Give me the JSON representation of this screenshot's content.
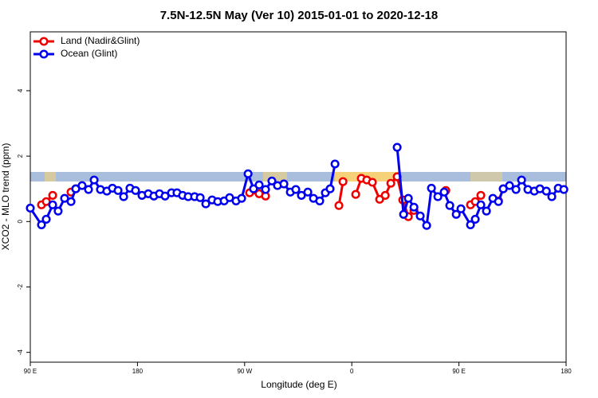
{
  "chart_data": {
    "type": "line",
    "title": "7.5N-12.5N May (Ver 10)   2015-01-01 to 2020-12-18",
    "x_label": "Longitude (deg E)",
    "y_label": "XCO2 - MLO trend (ppm)",
    "xlim": [
      90,
      540
    ],
    "xticks": [
      {
        "value": 90,
        "label": "90 E"
      },
      {
        "value": 180,
        "label": "180"
      },
      {
        "value": 270,
        "label": "90 W"
      },
      {
        "value": 360,
        "label": "0"
      },
      {
        "value": 450,
        "label": "90 E"
      },
      {
        "value": 540,
        "label": "180"
      }
    ],
    "ylim": [
      -4.3,
      5.8
    ],
    "yticks": [
      -4,
      -2,
      0,
      2,
      4
    ],
    "legend": "topleft",
    "series": [
      {
        "name": "Land (Nadir&Glint)",
        "color": "#ee0000",
        "x": [
          99.4,
          103.4,
          108.8,
          null,
          124.2,
          128.2,
          null,
          274.2,
          282.2,
          287.6,
          null,
          349.2,
          352.6,
          null,
          363.3,
          368.0,
          372.6,
          377.3,
          383.4,
          388.1,
          392.8,
          398.1,
          402.8,
          407.5,
          412.2,
          null,
          439.0,
          null,
          459.7,
          463.7,
          468.4,
          null,
          483.2,
          487.2
        ],
        "values": [
          0.51,
          0.61,
          0.8,
          null,
          0.9,
          1.0,
          null,
          0.88,
          0.85,
          0.78,
          null,
          0.49,
          1.22,
          null,
          0.83,
          1.32,
          1.27,
          1.2,
          0.68,
          0.8,
          1.17,
          1.37,
          0.66,
          0.15,
          0.34,
          null,
          0.95,
          null,
          0.51,
          0.61,
          0.8,
          null,
          0.63,
          1.0
        ]
      },
      {
        "name": "Ocean (Glint)",
        "color": "#0000ee",
        "x": [
          90,
          99.4,
          103.4,
          108.8,
          113.4,
          118.8,
          124.2,
          128.2,
          133.5,
          138.9,
          143.6,
          148.9,
          154.3,
          159.0,
          163.7,
          168.4,
          173.7,
          178.4,
          183.8,
          189.1,
          193.8,
          198.5,
          203.2,
          208.6,
          213.2,
          217.9,
          222.6,
          228.0,
          232.7,
          237.4,
          242.7,
          247.4,
          252.8,
          257.4,
          262.8,
          267.5,
          272.9,
          277.5,
          282.2,
          287.6,
          292.9,
          297.6,
          303.0,
          308.4,
          313.0,
          317.7,
          323.1,
          327.8,
          333.1,
          337.8,
          341.8,
          345.9,
          null,
          398.1,
          403.5,
          407.5,
          412.2,
          417.5,
          422.9,
          426.9,
          432.3,
          437.6,
          442.3,
          447.7,
          451.7,
          459.7,
          463.7,
          468.4,
          473.1,
          478.5,
          483.2,
          487.2,
          492.5,
          497.9,
          502.6,
          507.9,
          513.3,
          518.0,
          523.4,
          528.0,
          533.4,
          538.1
        ],
        "values": [
          0.41,
          -0.1,
          0.07,
          0.51,
          0.32,
          0.71,
          0.61,
          1.0,
          1.1,
          0.98,
          1.27,
          0.98,
          0.93,
          1.02,
          0.95,
          0.76,
          1.02,
          0.95,
          0.8,
          0.85,
          0.78,
          0.85,
          0.78,
          0.88,
          0.88,
          0.8,
          0.76,
          0.76,
          0.73,
          0.54,
          0.66,
          0.61,
          0.63,
          0.73,
          0.63,
          0.71,
          1.46,
          1.0,
          1.12,
          0.98,
          1.24,
          1.1,
          1.15,
          0.9,
          0.98,
          0.8,
          0.9,
          0.71,
          0.63,
          0.88,
          1.0,
          1.76,
          null,
          2.27,
          0.22,
          0.71,
          0.44,
          0.17,
          -0.12,
          1.02,
          0.76,
          0.9,
          0.49,
          0.22,
          0.39,
          -0.1,
          0.07,
          0.51,
          0.32,
          0.71,
          0.61,
          1.0,
          1.1,
          0.98,
          1.27,
          0.98,
          0.93,
          1.0,
          0.93,
          0.76,
          1.02,
          0.98
        ]
      }
    ]
  }
}
